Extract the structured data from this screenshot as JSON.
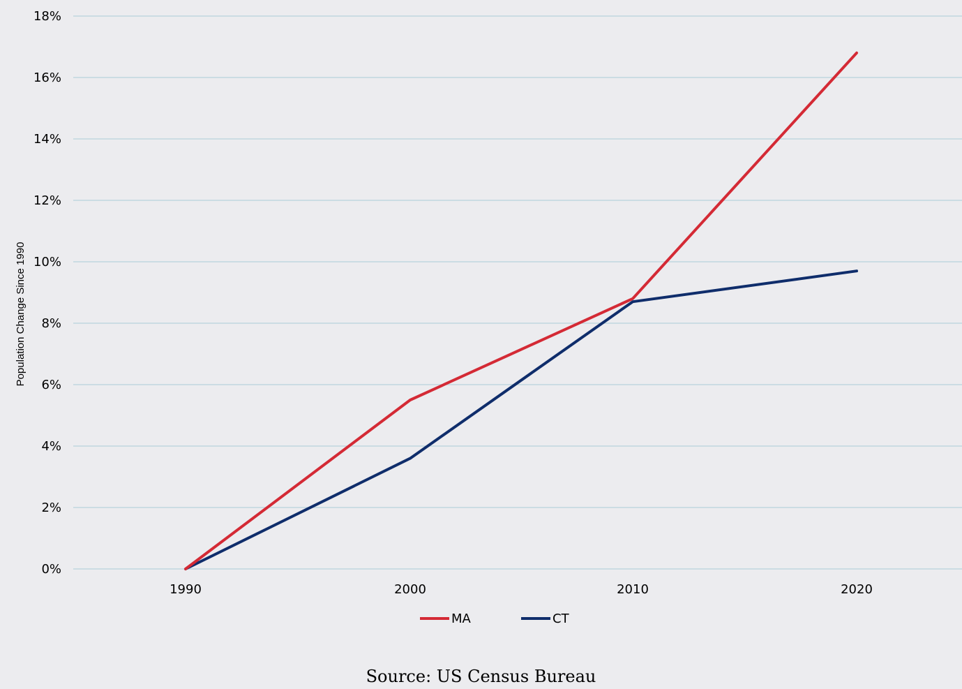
{
  "chart_data": {
    "type": "line",
    "x": [
      "1990",
      "2000",
      "2010",
      "2020"
    ],
    "series": [
      {
        "name": "MA",
        "color": "#d42a35",
        "values": [
          0.0,
          5.5,
          8.8,
          16.8
        ]
      },
      {
        "name": "CT",
        "color": "#0f2d6b",
        "values": [
          0.0,
          3.6,
          8.7,
          9.7
        ]
      }
    ],
    "ylabel": "Population Change Since 1990",
    "xlabel": "",
    "ylim": [
      0,
      18
    ],
    "yticks": [
      0,
      2,
      4,
      6,
      8,
      10,
      12,
      14,
      16,
      18
    ],
    "ytick_labels": [
      "0%",
      "2%",
      "4%",
      "6%",
      "8%",
      "10%",
      "12%",
      "14%",
      "16%",
      "18%"
    ],
    "grid": true,
    "gridline_color": "#b7d3dc",
    "legend_position": "bottom-center"
  },
  "source": "Source: US Census Bureau",
  "background_color": "#ececef"
}
